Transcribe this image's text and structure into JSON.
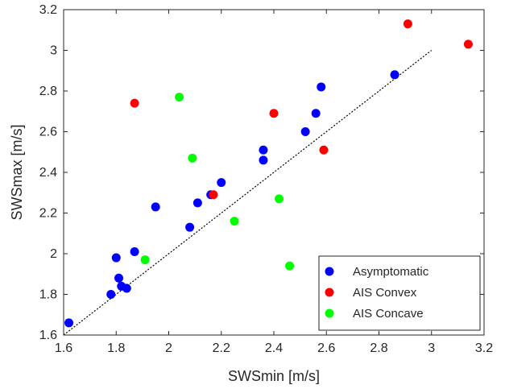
{
  "chart_data": {
    "type": "scatter",
    "xlabel": "SWSmin [m/s]",
    "ylabel": "SWSmax [m/s]",
    "xlim": [
      1.6,
      3.2
    ],
    "ylim": [
      1.6,
      3.2
    ],
    "xticks": [
      "1.6",
      "1.8",
      "2",
      "2.2",
      "2.4",
      "2.6",
      "2.8",
      "3",
      "3.2"
    ],
    "yticks": [
      "1.6",
      "1.8",
      "2",
      "2.2",
      "2.4",
      "2.6",
      "2.8",
      "3",
      "3.2"
    ],
    "grid": false,
    "legend_position": "bottom-right",
    "reference_line": {
      "style": "dotted",
      "x": [
        1.6,
        3.0
      ],
      "y": [
        1.6,
        3.0
      ]
    },
    "series": [
      {
        "name": "Asymptomatic",
        "color": "#0000ff",
        "x": [
          1.62,
          1.78,
          1.8,
          1.81,
          1.82,
          1.84,
          1.87,
          1.95,
          2.08,
          2.11,
          2.16,
          2.2,
          2.36,
          2.36,
          2.52,
          2.56,
          2.58,
          2.86
        ],
        "y": [
          1.66,
          1.8,
          1.98,
          1.88,
          1.84,
          1.83,
          2.01,
          2.23,
          2.13,
          2.25,
          2.29,
          2.35,
          2.51,
          2.46,
          2.6,
          2.69,
          2.82,
          2.88
        ]
      },
      {
        "name": "AIS Convex",
        "color": "#ff0000",
        "x": [
          1.87,
          2.17,
          2.4,
          2.59,
          2.91,
          3.14
        ],
        "y": [
          2.74,
          2.29,
          2.69,
          2.51,
          3.13,
          3.03
        ]
      },
      {
        "name": "AIS Concave",
        "color": "#00ff00",
        "x": [
          1.91,
          2.04,
          2.09,
          2.25,
          2.42,
          2.46
        ],
        "y": [
          1.97,
          2.77,
          2.47,
          2.16,
          2.27,
          1.94
        ]
      }
    ]
  }
}
